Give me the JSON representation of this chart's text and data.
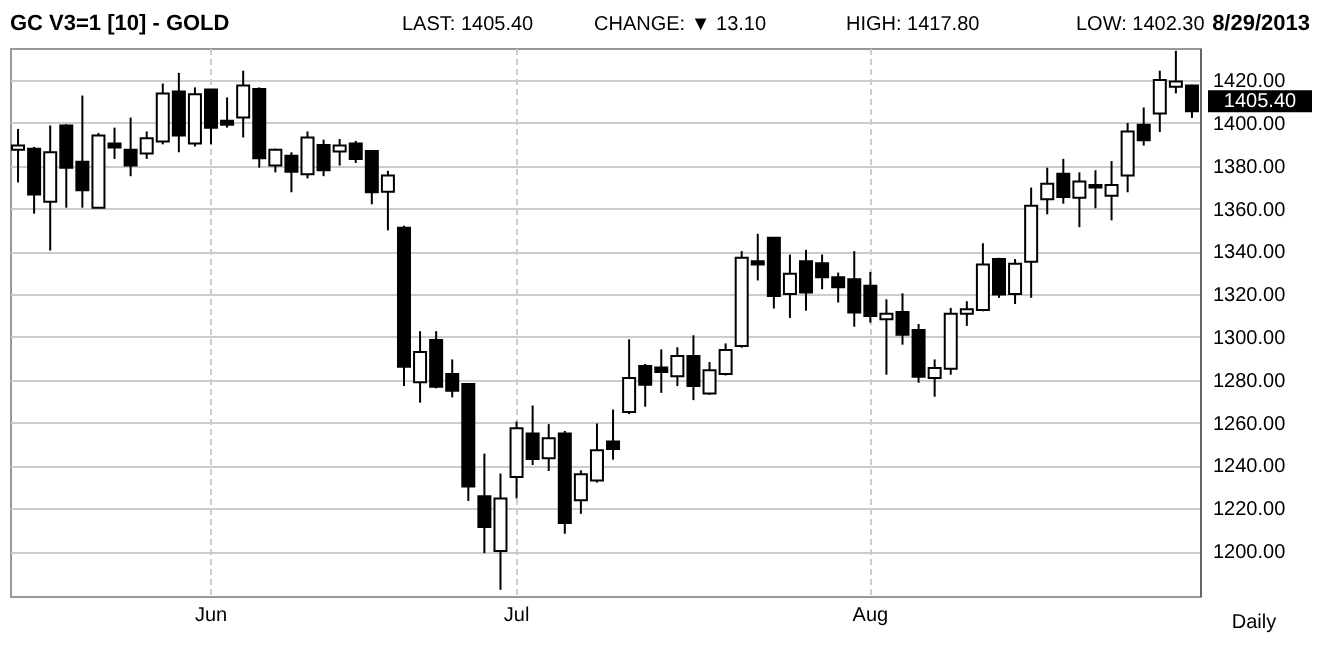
{
  "chart_data": {
    "type": "candlestick",
    "title": "GC V3=1 [10] - GOLD",
    "annotations": [
      "LAST: 1405.40",
      "CHANGE: ▼ 13.10",
      "HIGH: 1417.80",
      "LOW: 1402.30",
      "8/29/2013",
      "Daily",
      "1405.40"
    ],
    "categories": [
      null,
      null,
      null,
      null,
      null,
      null,
      null,
      null,
      null,
      null,
      null,
      null,
      "Jun",
      null,
      null,
      null,
      null,
      null,
      null,
      null,
      null,
      null,
      null,
      null,
      null,
      null,
      null,
      null,
      null,
      null,
      null,
      "Jul",
      null,
      null,
      null,
      null,
      null,
      null,
      null,
      null,
      null,
      null,
      null,
      null,
      null,
      null,
      null,
      null,
      null,
      null,
      null,
      null,
      null,
      "Aug",
      null,
      null,
      null,
      null,
      null,
      null,
      null,
      null,
      null,
      null,
      null,
      null,
      null,
      null,
      null,
      null,
      null,
      null,
      null,
      null
    ],
    "ohlc": [
      [
        1387.5,
        1397.2,
        1372.2,
        1389.4
      ],
      [
        1387.9,
        1388.8,
        1357.6,
        1366.6
      ],
      [
        1363.2,
        1398.8,
        1340.4,
        1386.3
      ],
      [
        1398.8,
        1399.4,
        1360.4,
        1379.1
      ],
      [
        1381.9,
        1412.8,
        1360.4,
        1368.5
      ],
      [
        1360.4,
        1395.3,
        1360.4,
        1394.1
      ],
      [
        1390.4,
        1397.8,
        1383.2,
        1388.5
      ],
      [
        1387.5,
        1402.5,
        1375.1,
        1380.1
      ],
      [
        1385.7,
        1396.0,
        1383.2,
        1392.8
      ],
      [
        1391.3,
        1418.4,
        1390.0,
        1413.8
      ],
      [
        1414.7,
        1423.4,
        1386.3,
        1394.1
      ],
      [
        1390.4,
        1416.6,
        1389.0,
        1413.4
      ],
      [
        1415.6,
        1415.6,
        1390.0,
        1397.8
      ],
      [
        1401.0,
        1411.9,
        1397.8,
        1399.1
      ],
      [
        1402.5,
        1424.4,
        1393.2,
        1417.5
      ],
      [
        1415.9,
        1416.6,
        1379.1,
        1383.5
      ],
      [
        1380.1,
        1388.0,
        1376.9,
        1387.5
      ],
      [
        1384.7,
        1386.3,
        1367.6,
        1377.2
      ],
      [
        1376.0,
        1396.0,
        1374.1,
        1393.2
      ],
      [
        1389.7,
        1392.2,
        1375.1,
        1377.9
      ],
      [
        1386.6,
        1392.5,
        1380.1,
        1389.4
      ],
      [
        1390.4,
        1391.6,
        1381.3,
        1383.2
      ],
      [
        1386.9,
        1387.0,
        1362.0,
        1367.6
      ],
      [
        1367.9,
        1377.6,
        1349.8,
        1375.4
      ],
      [
        1351.0,
        1352.0,
        1277.1,
        1286.1
      ],
      [
        1278.9,
        1302.7,
        1269.3,
        1293.0
      ],
      [
        1298.6,
        1302.7,
        1276.0,
        1276.7
      ],
      [
        1282.7,
        1289.5,
        1271.8,
        1274.9
      ],
      [
        1278.0,
        1278.0,
        1223.4,
        1230.2
      ],
      [
        1225.6,
        1245.5,
        1199.0,
        1211.2
      ],
      [
        1200.0,
        1236.2,
        1181.9,
        1224.6
      ],
      [
        1234.6,
        1260.5,
        1224.6,
        1257.4
      ],
      [
        1254.9,
        1268.0,
        1240.2,
        1243.0
      ],
      [
        1243.3,
        1259.3,
        1237.4,
        1252.7
      ],
      [
        1254.9,
        1256.1,
        1208.1,
        1213.1
      ],
      [
        1223.7,
        1237.7,
        1217.4,
        1235.9
      ],
      [
        1233.0,
        1259.6,
        1232.0,
        1247.1
      ],
      [
        1251.2,
        1266.1,
        1242.7,
        1247.7
      ],
      [
        1264.9,
        1298.9,
        1264.0,
        1280.8
      ],
      [
        1286.4,
        1287.4,
        1267.4,
        1277.7
      ],
      [
        1285.8,
        1294.2,
        1273.9,
        1283.6
      ],
      [
        1281.7,
        1295.2,
        1277.1,
        1291.1
      ],
      [
        1291.1,
        1300.8,
        1270.5,
        1277.1
      ],
      [
        1273.6,
        1288.3,
        1273.0,
        1284.5
      ],
      [
        1282.7,
        1297.0,
        1282.0,
        1293.9
      ],
      [
        1295.8,
        1340.1,
        1295.0,
        1337.0
      ],
      [
        1335.4,
        1348.2,
        1326.4,
        1333.9
      ],
      [
        1346.3,
        1346.5,
        1313.3,
        1319.2
      ],
      [
        1320.1,
        1338.5,
        1308.9,
        1329.5
      ],
      [
        1335.4,
        1340.7,
        1312.3,
        1320.8
      ],
      [
        1334.5,
        1338.5,
        1322.3,
        1327.9
      ],
      [
        1327.9,
        1330.1,
        1316.1,
        1323.2
      ],
      [
        1327.0,
        1340.1,
        1304.8,
        1311.4
      ],
      [
        1323.9,
        1330.4,
        1306.7,
        1309.8
      ],
      [
        1308.3,
        1317.6,
        1282.4,
        1310.8
      ],
      [
        1311.7,
        1320.4,
        1296.4,
        1301.1
      ],
      [
        1303.3,
        1306.1,
        1278.6,
        1281.4
      ],
      [
        1280.8,
        1289.5,
        1272.1,
        1285.5
      ],
      [
        1285.2,
        1313.6,
        1282.4,
        1310.8
      ],
      [
        1310.8,
        1316.7,
        1305.2,
        1312.9
      ],
      [
        1312.6,
        1343.8,
        1312.0,
        1333.9
      ],
      [
        1336.4,
        1337.0,
        1318.3,
        1319.8
      ],
      [
        1320.1,
        1336.4,
        1315.4,
        1334.2
      ],
      [
        1335.1,
        1369.8,
        1318.3,
        1361.3
      ],
      [
        1364.4,
        1379.1,
        1357.3,
        1371.6
      ],
      [
        1376.3,
        1383.2,
        1362.3,
        1365.4
      ],
      [
        1365.1,
        1376.9,
        1351.3,
        1372.6
      ],
      [
        1371.0,
        1377.9,
        1360.1,
        1369.8
      ],
      [
        1366.0,
        1382.2,
        1354.5,
        1371.0
      ],
      [
        1375.4,
        1400.0,
        1367.6,
        1396.0
      ],
      [
        1399.1,
        1407.2,
        1389.4,
        1391.9
      ],
      [
        1404.4,
        1424.4,
        1395.7,
        1420.0
      ],
      [
        1416.9,
        1433.7,
        1413.8,
        1419.4
      ],
      [
        1417.5,
        1417.8,
        1402.3,
        1405.4
      ]
    ],
    "ylim": [
      1179,
      1435
    ],
    "yticks": [
      {
        "value": 1200,
        "label": "1200.00"
      },
      {
        "value": 1220,
        "label": "1220.00"
      },
      {
        "value": 1240,
        "label": "1240.00"
      },
      {
        "value": 1260,
        "label": "1260.00"
      },
      {
        "value": 1280,
        "label": "1280.00"
      },
      {
        "value": 1300,
        "label": "1300.00"
      },
      {
        "value": 1320,
        "label": "1320.00"
      },
      {
        "value": 1340,
        "label": "1340.00"
      },
      {
        "value": 1360,
        "label": "1360.00"
      },
      {
        "value": 1380,
        "label": "1380.00"
      },
      {
        "value": 1400,
        "label": "1400.00"
      },
      {
        "value": 1420,
        "label": "1420.00"
      }
    ],
    "grid": true
  }
}
